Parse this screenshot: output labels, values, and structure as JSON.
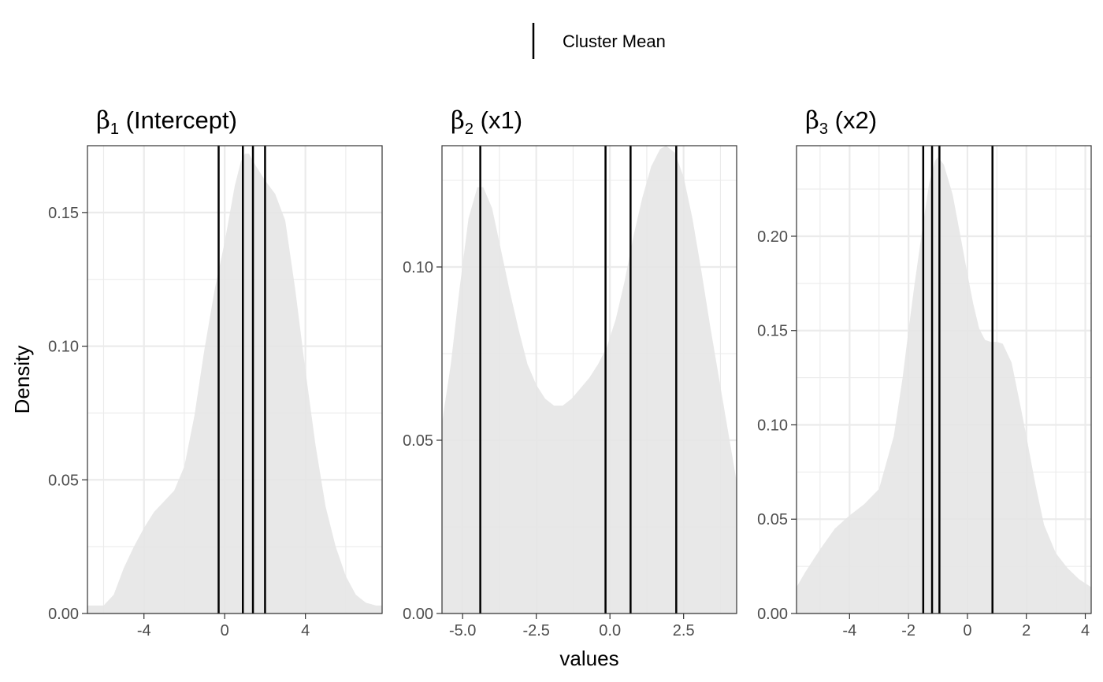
{
  "legend": {
    "label": "Cluster Mean",
    "position": "top"
  },
  "axis_titles": {
    "x": "values",
    "y": "Density"
  },
  "chart_data": [
    {
      "type": "area",
      "title": {
        "symbol": "β",
        "subscript": "1",
        "suffix": " (Intercept)"
      },
      "xlim": [
        -6.8,
        7.8
      ],
      "ylim": [
        0,
        0.175
      ],
      "x_ticks": [
        -4,
        0,
        4
      ],
      "x_tick_labels": [
        "-4",
        "0",
        "4"
      ],
      "y_ticks": [
        0,
        0.05,
        0.1,
        0.15
      ],
      "y_tick_labels": [
        "0.00",
        "0.05",
        "0.10",
        "0.15"
      ],
      "fill_color": "#e5e5e5",
      "density": {
        "x": [
          -6.8,
          -6.4,
          -6.0,
          -5.5,
          -5.0,
          -4.5,
          -4.0,
          -3.5,
          -3.0,
          -2.5,
          -2.0,
          -1.5,
          -1.0,
          -0.5,
          0.0,
          0.5,
          0.8,
          1.0,
          1.2,
          1.5,
          2.0,
          2.5,
          3.0,
          3.5,
          4.0,
          4.5,
          5.0,
          5.5,
          6.0,
          6.5,
          7.0,
          7.5,
          7.8
        ],
        "y": [
          0.003,
          0.003,
          0.003,
          0.007,
          0.017,
          0.025,
          0.032,
          0.038,
          0.042,
          0.046,
          0.055,
          0.074,
          0.099,
          0.121,
          0.139,
          0.16,
          0.169,
          0.172,
          0.172,
          0.168,
          0.162,
          0.157,
          0.147,
          0.121,
          0.091,
          0.063,
          0.04,
          0.025,
          0.014,
          0.007,
          0.004,
          0.003,
          0.003
        ]
      },
      "cluster_means": [
        -0.3,
        0.9,
        1.4,
        2.0
      ]
    },
    {
      "type": "area",
      "title": {
        "symbol": "β",
        "subscript": "2",
        "suffix": " (x1)"
      },
      "xlim": [
        -5.7,
        4.3
      ],
      "ylim": [
        0,
        0.135
      ],
      "x_ticks": [
        -5,
        -2.5,
        0,
        2.5
      ],
      "x_tick_labels": [
        "-5.0",
        "-2.5",
        "0.0",
        "2.5"
      ],
      "y_ticks": [
        0,
        0.05,
        0.1
      ],
      "y_tick_labels": [
        "0.00",
        "0.05",
        "0.10"
      ],
      "fill_color": "#e5e5e5",
      "density": {
        "x": [
          -5.7,
          -5.4,
          -5.1,
          -4.8,
          -4.5,
          -4.3,
          -4.0,
          -3.7,
          -3.4,
          -3.1,
          -2.8,
          -2.5,
          -2.2,
          -1.9,
          -1.6,
          -1.3,
          -1.0,
          -0.7,
          -0.4,
          -0.1,
          0.2,
          0.5,
          0.8,
          1.1,
          1.4,
          1.7,
          1.9,
          2.2,
          2.5,
          2.8,
          3.1,
          3.4,
          3.7,
          4.0,
          4.3
        ],
        "y": [
          0.055,
          0.072,
          0.094,
          0.114,
          0.123,
          0.123,
          0.117,
          0.105,
          0.093,
          0.082,
          0.072,
          0.066,
          0.062,
          0.06,
          0.06,
          0.062,
          0.065,
          0.068,
          0.072,
          0.077,
          0.085,
          0.096,
          0.109,
          0.12,
          0.129,
          0.134,
          0.135,
          0.133,
          0.126,
          0.114,
          0.099,
          0.083,
          0.068,
          0.053,
          0.038
        ]
      },
      "cluster_means": [
        -4.4,
        -0.15,
        0.7,
        2.25
      ]
    },
    {
      "type": "area",
      "title": {
        "symbol": "β",
        "subscript": "3",
        "suffix": " (x2)"
      },
      "xlim": [
        -5.8,
        4.2
      ],
      "ylim": [
        0,
        0.248
      ],
      "x_ticks": [
        -4,
        -2,
        0,
        2,
        4
      ],
      "x_tick_labels": [
        "-4",
        "-2",
        "0",
        "2",
        "4"
      ],
      "y_ticks": [
        0,
        0.05,
        0.1,
        0.15,
        0.2
      ],
      "y_tick_labels": [
        "0.00",
        "0.05",
        "0.10",
        "0.15",
        "0.20"
      ],
      "fill_color": "#e5e5e5",
      "density": {
        "x": [
          -5.8,
          -5.5,
          -5.0,
          -4.5,
          -4.0,
          -3.5,
          -3.0,
          -2.5,
          -2.2,
          -2.0,
          -1.8,
          -1.5,
          -1.3,
          -1.1,
          -1.0,
          -0.8,
          -0.5,
          -0.2,
          0.0,
          0.2,
          0.4,
          0.6,
          0.8,
          1.0,
          1.2,
          1.5,
          1.8,
          2.0,
          2.3,
          2.6,
          3.0,
          3.4,
          3.8,
          4.2
        ],
        "y": [
          0.014,
          0.022,
          0.034,
          0.045,
          0.052,
          0.058,
          0.066,
          0.094,
          0.125,
          0.15,
          0.174,
          0.207,
          0.228,
          0.24,
          0.242,
          0.238,
          0.222,
          0.197,
          0.18,
          0.164,
          0.151,
          0.145,
          0.144,
          0.144,
          0.143,
          0.133,
          0.11,
          0.094,
          0.069,
          0.047,
          0.032,
          0.024,
          0.018,
          0.014
        ]
      },
      "cluster_means": [
        -1.5,
        -1.2,
        -0.95,
        0.85
      ]
    }
  ]
}
